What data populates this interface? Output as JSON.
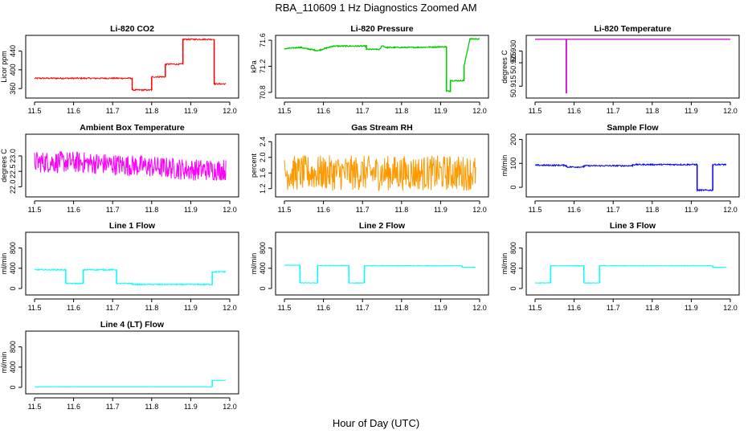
{
  "figure": {
    "title": "RBA_110609  1 Hz Diagnostics Zoomed AM",
    "xlabel": "Hour of Day (UTC)"
  },
  "chart_data": [
    {
      "type": "line",
      "title": "Li-820 CO2",
      "ylabel": "Licor ppm",
      "color": "#ff0000",
      "xlim": [
        11.5,
        12.0
      ],
      "ylim": [
        345,
        470
      ],
      "xticks": [
        "11.5",
        "11.6",
        "11.7",
        "11.8",
        "11.9",
        "12.0"
      ],
      "yticks": [
        "360",
        "400",
        "440"
      ],
      "noise": 1.5,
      "x": [
        11.5,
        11.75,
        11.75,
        11.8,
        11.8,
        11.835,
        11.835,
        11.88,
        11.88,
        11.96,
        11.96,
        11.99
      ],
      "y": [
        382,
        382,
        357,
        357,
        385,
        385,
        412,
        412,
        465,
        465,
        370,
        370
      ]
    },
    {
      "type": "line",
      "title": "Li-820 Pressure",
      "ylabel": "kPa",
      "color": "#00cc00",
      "xlim": [
        11.5,
        12.0
      ],
      "ylim": [
        70.75,
        71.65
      ],
      "xticks": [
        "11.5",
        "11.6",
        "11.7",
        "11.8",
        "11.9",
        "12.0"
      ],
      "yticks": [
        "70.8",
        "71.2",
        "71.6"
      ],
      "noise": 0.008,
      "x": [
        11.5,
        11.54,
        11.54,
        11.585,
        11.585,
        11.625,
        11.625,
        11.71,
        11.71,
        11.745,
        11.75,
        11.76,
        11.83,
        11.915,
        11.915,
        11.925,
        11.925,
        11.96,
        11.96,
        11.975,
        11.975,
        12.0
      ],
      "y": [
        71.47,
        71.49,
        71.49,
        71.44,
        71.44,
        71.51,
        71.51,
        71.51,
        71.46,
        71.46,
        71.52,
        71.49,
        71.49,
        71.5,
        70.82,
        70.82,
        70.98,
        70.98,
        71.2,
        71.62,
        71.62,
        71.62
      ]
    },
    {
      "type": "line",
      "title": "Li-820 Temperature",
      "ylabel": "degrees C",
      "color": "#cc00cc",
      "xlim": [
        11.5,
        12.0
      ],
      "ylim": [
        50.911,
        50.936
      ],
      "xticks": [
        "11.5",
        "11.6",
        "11.7",
        "11.8",
        "11.9",
        "12.0"
      ],
      "yticks": [
        "50.915",
        "50.925",
        "50.930"
      ],
      "noise": 0,
      "x": [
        11.5,
        11.58,
        11.58,
        11.58,
        11.58,
        12.0
      ],
      "y": [
        50.935,
        50.935,
        50.912,
        50.912,
        50.935,
        50.935
      ]
    },
    {
      "type": "line",
      "title": "Ambient Box Temperature",
      "ylabel": "degrees C",
      "color": "#ff00ff",
      "xlim": [
        11.5,
        12.0
      ],
      "ylim": [
        21.75,
        23.65
      ],
      "xticks": [
        "11.5",
        "11.6",
        "11.7",
        "11.8",
        "11.9",
        "12.0"
      ],
      "yticks": [
        "22.0",
        "22.5",
        "23.0"
      ],
      "noise": 0.35,
      "x": [
        11.5,
        11.6,
        11.8,
        11.9,
        11.99
      ],
      "y": [
        22.8,
        22.8,
        22.65,
        22.55,
        22.55
      ]
    },
    {
      "type": "line",
      "title": "Gas Stream RH",
      "ylabel": "percent",
      "color": "#ff9900",
      "xlim": [
        11.5,
        12.0
      ],
      "ylim": [
        1.05,
        2.55
      ],
      "xticks": [
        "11.5",
        "11.6",
        "11.7",
        "11.8",
        "11.9",
        "12.0"
      ],
      "yticks": [
        "1.2",
        "1.6",
        "2.0",
        "2.4"
      ],
      "noise": 0.45,
      "x": [
        11.5,
        11.99
      ],
      "y": [
        1.6,
        1.6
      ]
    },
    {
      "type": "line",
      "title": "Sample Flow",
      "ylabel": "ml/min",
      "color": "#0000ee",
      "xlim": [
        11.5,
        12.0
      ],
      "ylim": [
        -30,
        215
      ],
      "xticks": [
        "11.5",
        "11.6",
        "11.7",
        "11.8",
        "11.9",
        "12.0"
      ],
      "yticks": [
        "0",
        "100",
        "200"
      ],
      "noise": 3,
      "x": [
        11.5,
        11.58,
        11.58,
        11.625,
        11.625,
        11.75,
        11.75,
        11.915,
        11.915,
        11.955,
        11.955,
        11.99
      ],
      "y": [
        92,
        92,
        85,
        85,
        90,
        90,
        95,
        95,
        -12,
        -12,
        95,
        95
      ]
    },
    {
      "type": "line",
      "title": "Line 1 Flow",
      "ylabel": "ml/min",
      "color": "#00ffff",
      "xlim": [
        11.5,
        12.0
      ],
      "ylim": [
        -80,
        1080
      ],
      "xticks": [
        "11.5",
        "11.6",
        "11.7",
        "11.8",
        "11.9",
        "12.0"
      ],
      "yticks": [
        "0",
        "400",
        "800"
      ],
      "noise": 12,
      "x": [
        11.5,
        11.58,
        11.58,
        11.625,
        11.625,
        11.71,
        11.71,
        11.75,
        11.75,
        11.955,
        11.955,
        11.99
      ],
      "y": [
        370,
        370,
        100,
        100,
        370,
        370,
        100,
        100,
        80,
        80,
        330,
        330
      ]
    },
    {
      "type": "line",
      "title": "Line 2 Flow",
      "ylabel": "ml/min",
      "color": "#00ffff",
      "xlim": [
        11.5,
        12.0
      ],
      "ylim": [
        -80,
        1080
      ],
      "xticks": [
        "11.5",
        "11.6",
        "11.7",
        "11.8",
        "11.9",
        "12.0"
      ],
      "yticks": [
        "0",
        "400",
        "800"
      ],
      "noise": 6,
      "x": [
        11.5,
        11.54,
        11.54,
        11.585,
        11.585,
        11.665,
        11.665,
        11.705,
        11.705,
        11.955,
        11.955,
        11.99
      ],
      "y": [
        460,
        460,
        110,
        110,
        455,
        455,
        110,
        110,
        450,
        450,
        420,
        420
      ]
    },
    {
      "type": "line",
      "title": "Line 3 Flow",
      "ylabel": "ml/min",
      "color": "#00ffff",
      "xlim": [
        11.5,
        12.0
      ],
      "ylim": [
        -80,
        1080
      ],
      "xticks": [
        "11.5",
        "11.6",
        "11.7",
        "11.8",
        "11.9",
        "12.0"
      ],
      "yticks": [
        "0",
        "400",
        "800"
      ],
      "noise": 6,
      "x": [
        11.5,
        11.54,
        11.54,
        11.625,
        11.625,
        11.665,
        11.665,
        11.955,
        11.955,
        11.99
      ],
      "y": [
        110,
        110,
        450,
        450,
        110,
        110,
        450,
        450,
        420,
        420
      ]
    },
    {
      "type": "line",
      "title": "Line 4 (LT) Flow",
      "ylabel": "ml/min",
      "color": "#00ffff",
      "xlim": [
        11.5,
        12.0
      ],
      "ylim": [
        -80,
        1080
      ],
      "xticks": [
        "11.5",
        "11.6",
        "11.7",
        "11.8",
        "11.9",
        "12.0"
      ],
      "yticks": [
        "0",
        "400",
        "800"
      ],
      "noise": 2,
      "x": [
        11.5,
        11.955,
        11.955,
        11.99
      ],
      "y": [
        10,
        10,
        140,
        140
      ]
    }
  ]
}
